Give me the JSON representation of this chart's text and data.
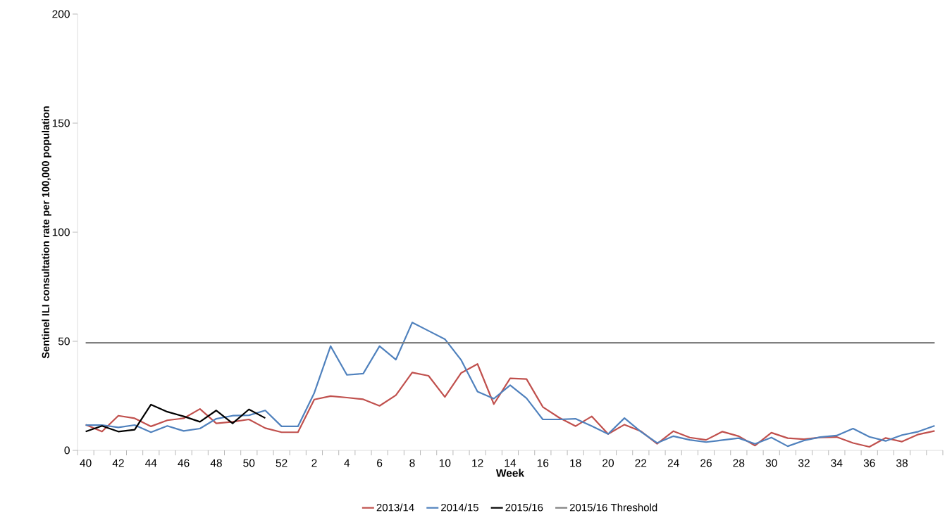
{
  "chart_data": {
    "type": "line",
    "xlabel": "Week",
    "ylabel": "Sentinel ILI consultation rate per 100,000 population",
    "categories": [
      "40",
      null,
      "42",
      null,
      "44",
      null,
      "46",
      null,
      "48",
      null,
      "50",
      null,
      "52",
      null,
      "2",
      null,
      "4",
      null,
      "6",
      null,
      "8",
      null,
      "10",
      null,
      "12",
      null,
      "14",
      null,
      "16",
      null,
      "18",
      null,
      "20",
      null,
      "22",
      null,
      "24",
      null,
      "26",
      null,
      "28",
      null,
      "30",
      null,
      "32",
      null,
      "34",
      null,
      "36",
      null,
      "38",
      null,
      null
    ],
    "series": [
      {
        "name": "2013/14",
        "color": "#c0504d",
        "values": [
          11.8,
          8.6,
          15.9,
          14.7,
          11,
          13.8,
          14.7,
          19,
          12.4,
          13.1,
          14.2,
          10.2,
          8.3,
          8.3,
          23.3,
          24.9,
          24.2,
          23.4,
          20.4,
          25.3,
          35.7,
          34.2,
          24.5,
          35.5,
          39.6,
          21.2,
          33,
          32.7,
          19.9,
          15,
          11.1,
          15.6,
          7.5,
          11.8,
          8.8,
          3,
          8.8,
          5.9,
          4.8,
          8.6,
          6.5,
          2.2,
          8.1,
          5.6,
          5.1,
          5.9,
          6.1,
          3.4,
          1.6,
          5.7,
          4,
          7.3,
          8.9
        ]
      },
      {
        "name": "2014/15",
        "color": "#4f81bd",
        "values": [
          11.6,
          11.6,
          10.5,
          11.6,
          8.3,
          11.2,
          8.9,
          10,
          14.5,
          15.9,
          16.1,
          18.3,
          11,
          11,
          26.3,
          47.8,
          34.6,
          35.2,
          47.8,
          41.6,
          58.6,
          54.8,
          51,
          41.4,
          26.9,
          23.7,
          29.9,
          23.9,
          14.2,
          14.2,
          14.5,
          11.1,
          7.5,
          14.8,
          8.6,
          3.4,
          6.5,
          4.8,
          3.8,
          4.7,
          5.6,
          3,
          5.9,
          1.9,
          4.5,
          6.1,
          6.8,
          10,
          6.2,
          4.3,
          7,
          8.6,
          11.3
        ]
      },
      {
        "name": "2015/16",
        "color": "#000000",
        "values": [
          8.6,
          11.2,
          8.6,
          9.5,
          21,
          17.7,
          15.6,
          13.1,
          18.3,
          12.4,
          18.8,
          14.8,
          null,
          null,
          null,
          null,
          null,
          null,
          null,
          null,
          null,
          null,
          null,
          null,
          null,
          null,
          null,
          null,
          null,
          null,
          null,
          null,
          null,
          null,
          null,
          null,
          null,
          null,
          null,
          null,
          null,
          null,
          null,
          null,
          null,
          null,
          null,
          null,
          null,
          null,
          null,
          null,
          null
        ]
      },
      {
        "name": "2015/16 Threshold",
        "color": "#808080",
        "values": [
          49.3,
          49.3,
          49.3,
          49.3,
          49.3,
          49.3,
          49.3,
          49.3,
          49.3,
          49.3,
          49.3,
          49.3,
          49.3,
          49.3,
          49.3,
          49.3,
          49.3,
          49.3,
          49.3,
          49.3,
          49.3,
          49.3,
          49.3,
          49.3,
          49.3,
          49.3,
          49.3,
          49.3,
          49.3,
          49.3,
          49.3,
          49.3,
          49.3,
          49.3,
          49.3,
          49.3,
          49.3,
          49.3,
          49.3,
          49.3,
          49.3,
          49.3,
          49.3,
          49.3,
          49.3,
          49.3,
          49.3,
          49.3,
          49.3,
          49.3,
          49.3,
          49.3,
          49.3
        ]
      }
    ],
    "ylim": [
      0,
      200
    ],
    "yticks": [
      0,
      50,
      100,
      150,
      200
    ],
    "legend": "bottom",
    "marker": "none",
    "line_style": "solid",
    "grid": false
  }
}
